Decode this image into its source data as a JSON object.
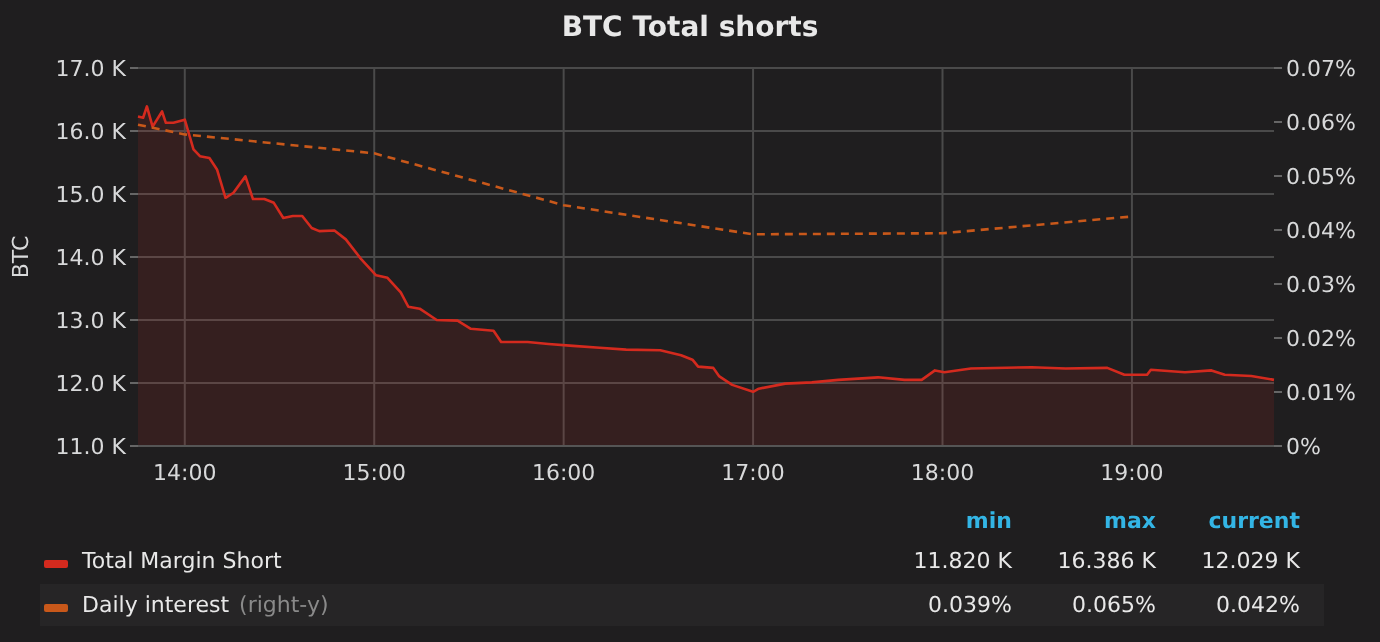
{
  "chart_data": {
    "type": "area",
    "title": "BTC Total shorts",
    "ylabel": "BTC",
    "xlim": [
      13.753,
      19.75
    ],
    "xticks": [
      {
        "value": 14,
        "label": "14:00"
      },
      {
        "value": 15,
        "label": "15:00"
      },
      {
        "value": 16,
        "label": "16:00"
      },
      {
        "value": 17,
        "label": "17:00"
      },
      {
        "value": 18,
        "label": "18:00"
      },
      {
        "value": 19,
        "label": "19:00"
      }
    ],
    "ylim": [
      11,
      17
    ],
    "yticks": [
      {
        "value": 11,
        "label": "11.0 K"
      },
      {
        "value": 12,
        "label": "12.0 K"
      },
      {
        "value": 13,
        "label": "13.0 K"
      },
      {
        "value": 14,
        "label": "14.0 K"
      },
      {
        "value": 15,
        "label": "15.0 K"
      },
      {
        "value": 16,
        "label": "16.0 K"
      },
      {
        "value": 17,
        "label": "17.0 K"
      }
    ],
    "y2lim": [
      0,
      0.07
    ],
    "y2ticks": [
      {
        "value": 0,
        "label": "0%"
      },
      {
        "value": 0.01,
        "label": "0.01%"
      },
      {
        "value": 0.02,
        "label": "0.02%"
      },
      {
        "value": 0.03,
        "label": "0.03%"
      },
      {
        "value": 0.04,
        "label": "0.04%"
      },
      {
        "value": 0.05,
        "label": "0.05%"
      },
      {
        "value": 0.06,
        "label": "0.06%"
      },
      {
        "value": 0.07,
        "label": "0.07%"
      }
    ],
    "grid": true,
    "legend": "bottom",
    "series": [
      {
        "name": "Total Margin Short",
        "color": "#d42a1e",
        "line_style": "solid",
        "x": [
          13.753,
          13.78,
          13.8,
          13.83,
          13.88,
          13.9,
          13.94,
          14.0,
          14.046,
          14.08,
          14.13,
          14.17,
          14.215,
          14.257,
          14.32,
          14.36,
          14.42,
          14.47,
          14.52,
          14.57,
          14.62,
          14.67,
          14.71,
          14.79,
          14.85,
          14.93,
          15.01,
          15.07,
          15.14,
          15.18,
          15.24,
          15.33,
          15.44,
          15.51,
          15.63,
          15.67,
          15.81,
          15.92,
          16.05,
          16.19,
          16.33,
          16.51,
          16.62,
          16.68,
          16.71,
          16.79,
          16.82,
          16.89,
          17.0,
          17.03,
          17.17,
          17.31,
          17.45,
          17.66,
          17.8,
          17.89,
          17.96,
          18.01,
          18.15,
          18.47,
          18.65,
          18.87,
          18.96,
          19.08,
          19.1,
          19.28,
          19.42,
          19.49,
          19.63,
          19.75
        ],
        "values": [
          16.23,
          16.21,
          16.39,
          16.07,
          16.31,
          16.13,
          16.13,
          16.18,
          15.71,
          15.6,
          15.57,
          15.39,
          14.94,
          15.02,
          15.28,
          14.92,
          14.92,
          14.86,
          14.62,
          14.65,
          14.65,
          14.46,
          14.41,
          14.42,
          14.28,
          13.97,
          13.71,
          13.67,
          13.44,
          13.21,
          13.18,
          13.0,
          12.99,
          12.86,
          12.83,
          12.65,
          12.65,
          12.62,
          12.59,
          12.56,
          12.53,
          12.52,
          12.44,
          12.37,
          12.26,
          12.24,
          12.11,
          11.97,
          11.86,
          11.91,
          11.99,
          12.01,
          12.05,
          12.09,
          12.05,
          12.05,
          12.2,
          12.17,
          12.23,
          12.25,
          12.23,
          12.24,
          12.13,
          12.13,
          12.21,
          12.17,
          12.2,
          12.13,
          12.11,
          12.05
        ]
      },
      {
        "name": "Daily interest",
        "type": "line",
        "axis": "y2",
        "color": "#c8581a",
        "line_style": "dashed",
        "x": [
          13.753,
          14,
          15,
          16,
          17,
          18,
          19
        ],
        "values": [
          0.0595,
          0.0577,
          0.0542,
          0.0446,
          0.0392,
          0.0394,
          0.0425
        ]
      }
    ],
    "annotations": [
      "min",
      "max",
      "current",
      "11.820 K",
      "16.386 K",
      "12.029 K",
      "0.039%",
      "0.065%",
      "0.042%",
      "(right-y)"
    ]
  }
}
